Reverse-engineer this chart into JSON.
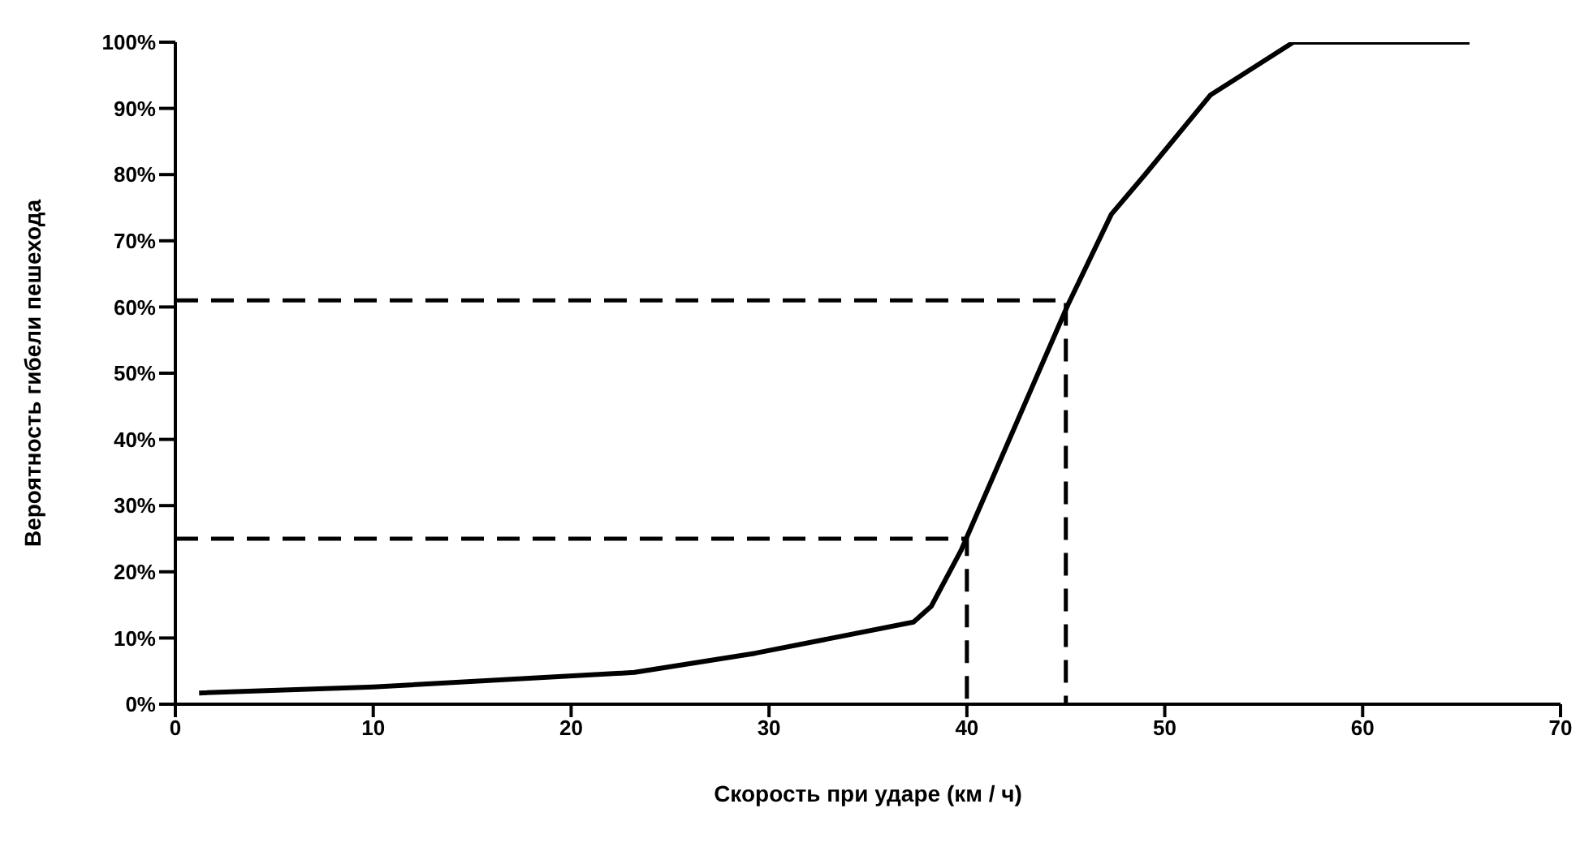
{
  "chart_data": {
    "type": "line",
    "xlabel": "Скорость при ударе (км / ч)",
    "ylabel": "Вероятность гибели пешехода",
    "xlim": [
      0,
      70
    ],
    "ylim": [
      0,
      100
    ],
    "xticks": [
      0,
      10,
      20,
      30,
      40,
      50,
      60,
      70
    ],
    "yticks": [
      {
        "value": 0,
        "label": "0%"
      },
      {
        "value": 10,
        "label": "10%"
      },
      {
        "value": 20,
        "label": "20%"
      },
      {
        "value": 30,
        "label": "30%"
      },
      {
        "value": 40,
        "label": "40%"
      },
      {
        "value": 50,
        "label": "50%"
      },
      {
        "value": 60,
        "label": "60%"
      },
      {
        "value": 70,
        "label": "70%"
      },
      {
        "value": 80,
        "label": "80%"
      },
      {
        "value": 90,
        "label": "90%"
      },
      {
        "value": 100,
        "label": "100%"
      }
    ],
    "grid": false,
    "legend": false,
    "marker": "none",
    "series": [
      {
        "color": "#000000",
        "line_style": "solid",
        "x": [
          1.2,
          10,
          23.2,
          29.3,
          37.3,
          38.2,
          39.7,
          45.1,
          47.3,
          49,
          52.3,
          56.5,
          65.4
        ],
        "values": [
          1.7,
          2.6,
          4.8,
          7.7,
          12.4,
          14.8,
          23.2,
          60.3,
          74,
          80,
          92,
          100,
          100
        ]
      },
      {
        "color": "#000000",
        "line_style": "dashed",
        "x": [
          0,
          45,
          45
        ],
        "values": [
          61,
          61,
          0
        ]
      },
      {
        "color": "#000000",
        "line_style": "dashed",
        "x": [
          0,
          40,
          40
        ],
        "values": [
          25,
          25,
          0
        ]
      }
    ]
  }
}
